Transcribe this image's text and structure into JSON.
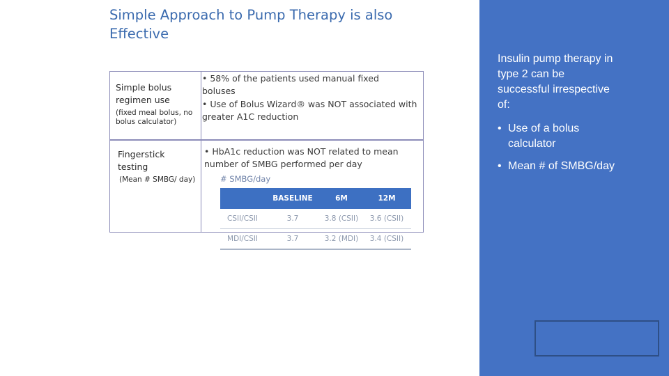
{
  "title": "Simple Approach to Pump Therapy is also Effective",
  "rows": [
    {
      "label": "Simple bolus regimen use",
      "sublabel": "(fixed meal bolus, no bolus calculator)",
      "bullets": [
        "58% of the patients used manual fixed boluses",
        "Use of Bolus Wizard® was NOT associated with greater A1C reduction"
      ]
    },
    {
      "label": "Fingerstick testing",
      "sublabel": "(Mean # SMBG/ day)",
      "bullets": [
        "HbA1c reduction was NOT related to mean number of SMBG performed per day"
      ]
    }
  ],
  "table": {
    "caption": "# SMBG/day",
    "headers": [
      "",
      "BASELINE",
      "6M",
      "12M"
    ],
    "rows": [
      [
        "CSII/CSII",
        "3.7",
        "3.8 (CSII)",
        "3.6 (CSII)"
      ],
      [
        "MDI/CSII",
        "3.7",
        "3.2 (MDI)",
        "3.4 (CSII)"
      ]
    ]
  },
  "sidebar": {
    "intro": "Insulin pump therapy in type 2 can be successful irrespective of:",
    "items": [
      "Use of a bolus calculator",
      "Mean # of SMBG/day"
    ],
    "bullet_glyph": "•",
    "background_color": "#4472c4"
  },
  "colors": {
    "title": "#3a6aae",
    "table_header": "#3d70c2",
    "frame": "#8b8bb8"
  }
}
